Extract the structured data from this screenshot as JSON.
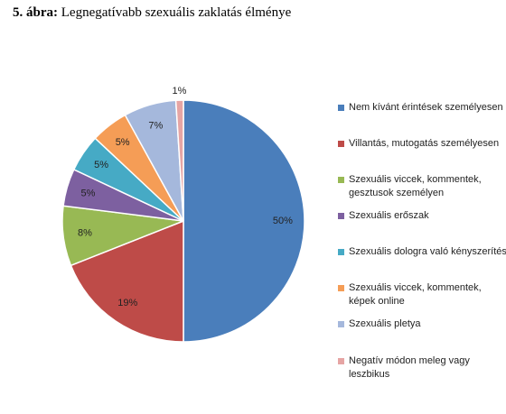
{
  "chart_data": {
    "type": "pie",
    "figure_label": "5. ábra:",
    "title": "Legnegatívabb szexuális zaklatás élménye",
    "categories": [
      "Nem kívánt érintések személyesen",
      "Villantás, mutogatás személyesen",
      "Szexuális viccek, kommentek, gesztusok személyen",
      "Szexuális erőszak",
      "Szexuális dologra való kényszerítés",
      "Szexuális viccek, kommentek, képek online",
      "Szexuális pletya",
      "Negatív módon meleg vagy leszbikus"
    ],
    "values": [
      50,
      19,
      8,
      5,
      5,
      5,
      7,
      1
    ],
    "value_labels": [
      "50%",
      "19%",
      "8%",
      "5%",
      "5%",
      "5%",
      "7%",
      "1%"
    ],
    "colors": [
      "#4a7ebb",
      "#be4b48",
      "#98b954",
      "#7d60a0",
      "#46aac5",
      "#f59d56",
      "#a5b8dc",
      "#e6a5a4"
    ],
    "legend": "right"
  }
}
